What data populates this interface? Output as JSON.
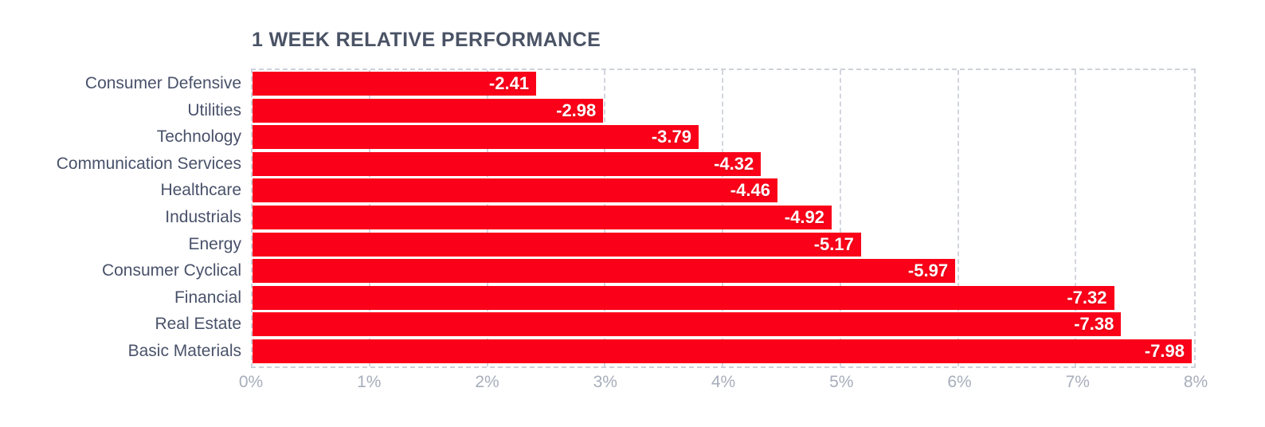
{
  "title": "1 WEEK RELATIVE PERFORMANCE",
  "chart_data": {
    "type": "bar",
    "orientation": "horizontal",
    "title": "1 WEEK RELATIVE PERFORMANCE",
    "categories": [
      "Consumer Defensive",
      "Utilities",
      "Technology",
      "Communication Services",
      "Healthcare",
      "Industrials",
      "Energy",
      "Consumer Cyclical",
      "Financial",
      "Real Estate",
      "Basic Materials"
    ],
    "values": [
      -2.41,
      -2.98,
      -3.79,
      -4.32,
      -4.46,
      -4.92,
      -5.17,
      -5.97,
      -7.32,
      -7.38,
      -7.98
    ],
    "value_labels": [
      "-2.41",
      "-2.98",
      "-3.79",
      "-4.32",
      "-4.46",
      "-4.92",
      "-5.17",
      "-5.97",
      "-7.32",
      "-7.38",
      "-7.98"
    ],
    "bar_extent_note": "bar length equals absolute value of performance in percent",
    "x_ticks": [
      "0%",
      "1%",
      "2%",
      "3%",
      "4%",
      "5%",
      "6%",
      "7%",
      "8%"
    ],
    "x_range": [
      0,
      8
    ],
    "grid": "dashed vertical gridlines at every 1%, dashed plot border",
    "legend": "none"
  },
  "colors": {
    "bar": "#fa0019",
    "value_label": "#ffffff",
    "title": "#4a5365",
    "category_label": "#49526a",
    "tick_label": "#a7aebb",
    "grid": "#d2d5dd",
    "background": "#ffffff"
  }
}
